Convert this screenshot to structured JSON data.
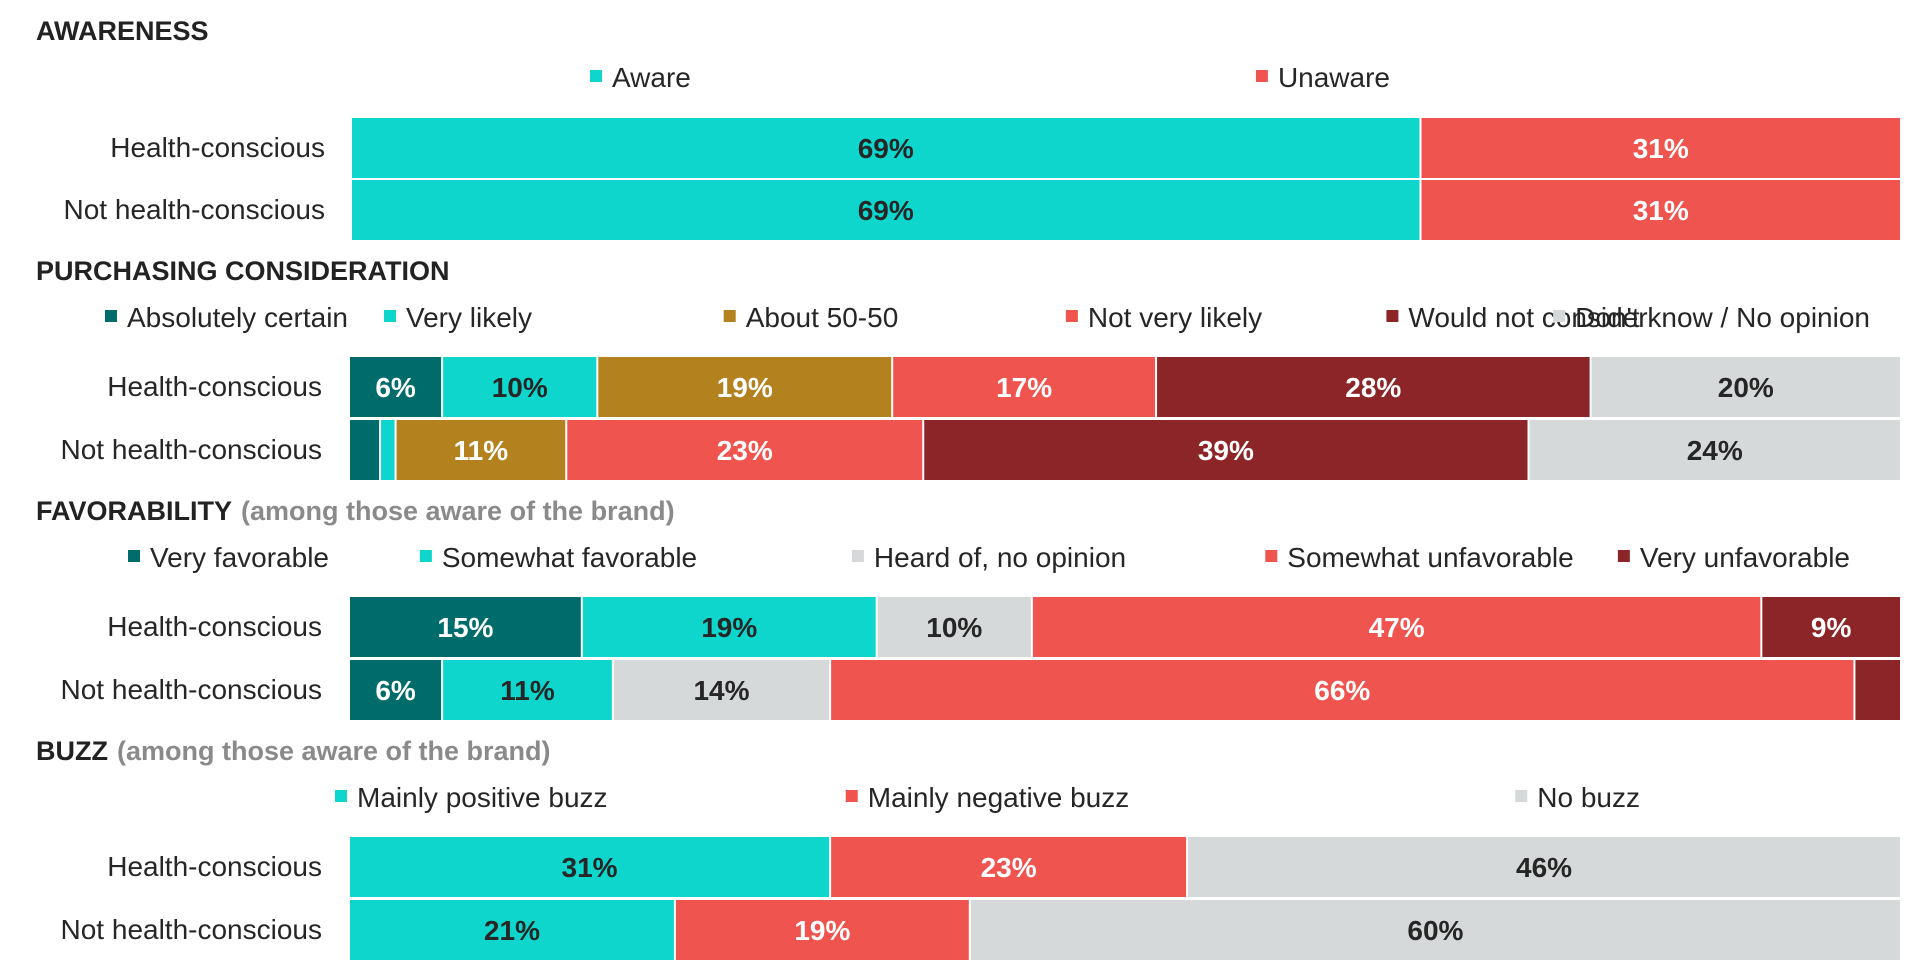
{
  "chart_data": [
    {
      "type": "bar",
      "orientation": "horizontal",
      "stacked": true,
      "title": "AWARENESS",
      "subtitle": "",
      "categories": [
        "Health-conscious",
        "Not health-conscious"
      ],
      "xlim": [
        0,
        100
      ],
      "legend_position": "top",
      "series": [
        {
          "name": "Aware",
          "color": "#0ed6cc",
          "text_color": "#262626",
          "values": [
            69,
            69
          ],
          "labels": [
            "69%",
            "69%"
          ]
        },
        {
          "name": "Unaware",
          "color": "#f0544f",
          "text_color": "#ffffff",
          "values": [
            31,
            31
          ],
          "labels": [
            "31%",
            "31%"
          ]
        }
      ]
    },
    {
      "type": "bar",
      "orientation": "horizontal",
      "stacked": true,
      "title": "PURCHASING CONSIDERATION",
      "subtitle": "",
      "categories": [
        "Health-conscious",
        "Not health-conscious"
      ],
      "xlim": [
        0,
        100
      ],
      "legend_position": "top",
      "series": [
        {
          "name": "Absolutely certain",
          "color": "#006b6b",
          "text_color": "#ffffff",
          "values": [
            6,
            2
          ],
          "labels": [
            "6%",
            ""
          ]
        },
        {
          "name": "Very likely",
          "color": "#0ed6cc",
          "text_color": "#262626",
          "values": [
            10,
            1
          ],
          "labels": [
            "10%",
            ""
          ]
        },
        {
          "name": "About 50-50",
          "color": "#b3821e",
          "text_color": "#ffffff",
          "values": [
            19,
            11
          ],
          "labels": [
            "19%",
            "11%"
          ]
        },
        {
          "name": "Not very likely",
          "color": "#f0544f",
          "text_color": "#ffffff",
          "values": [
            17,
            23
          ],
          "labels": [
            "17%",
            "23%"
          ]
        },
        {
          "name": "Would not consider",
          "color": "#8b2527",
          "text_color": "#ffffff",
          "values": [
            28,
            39
          ],
          "labels": [
            "28%",
            "39%"
          ]
        },
        {
          "name": "Don't know / No opinion",
          "color": "#d6d9da",
          "text_color": "#262626",
          "values": [
            20,
            24
          ],
          "labels": [
            "20%",
            "24%"
          ]
        }
      ]
    },
    {
      "type": "bar",
      "orientation": "horizontal",
      "stacked": true,
      "title": "FAVORABILITY",
      "subtitle": "(among those aware of the brand)",
      "categories": [
        "Health-conscious",
        "Not health-conscious"
      ],
      "xlim": [
        0,
        100
      ],
      "legend_position": "top",
      "series": [
        {
          "name": "Very favorable",
          "color": "#006b6b",
          "text_color": "#ffffff",
          "values": [
            15,
            6
          ],
          "labels": [
            "15%",
            "6%"
          ]
        },
        {
          "name": "Somewhat favorable",
          "color": "#0ed6cc",
          "text_color": "#262626",
          "values": [
            19,
            11
          ],
          "labels": [
            "19%",
            "11%"
          ]
        },
        {
          "name": "Heard of, no opinion",
          "color": "#d6d9da",
          "text_color": "#262626",
          "values": [
            10,
            14
          ],
          "labels": [
            "10%",
            "14%"
          ]
        },
        {
          "name": "Somewhat unfavorable",
          "color": "#f0544f",
          "text_color": "#ffffff",
          "values": [
            47,
            66
          ],
          "labels": [
            "47%",
            "66%"
          ]
        },
        {
          "name": "Very unfavorable",
          "color": "#8b2527",
          "text_color": "#ffffff",
          "values": [
            9,
            3
          ],
          "labels": [
            "9%",
            ""
          ]
        }
      ]
    },
    {
      "type": "bar",
      "orientation": "horizontal",
      "stacked": true,
      "title": "BUZZ",
      "subtitle": "(among those aware of the brand)",
      "categories": [
        "Health-conscious",
        "Not health-conscious"
      ],
      "xlim": [
        0,
        100
      ],
      "legend_position": "top",
      "series": [
        {
          "name": "Mainly positive buzz",
          "color": "#0ed6cc",
          "text_color": "#262626",
          "values": [
            31,
            21
          ],
          "labels": [
            "31%",
            "21%"
          ]
        },
        {
          "name": "Mainly negative buzz",
          "color": "#f0544f",
          "text_color": "#ffffff",
          "values": [
            23,
            19
          ],
          "labels": [
            "23%",
            "19%"
          ]
        },
        {
          "name": "No buzz",
          "color": "#d6d9da",
          "text_color": "#262626",
          "values": [
            46,
            60
          ],
          "labels": [
            "46%",
            "60%"
          ]
        }
      ]
    }
  ]
}
